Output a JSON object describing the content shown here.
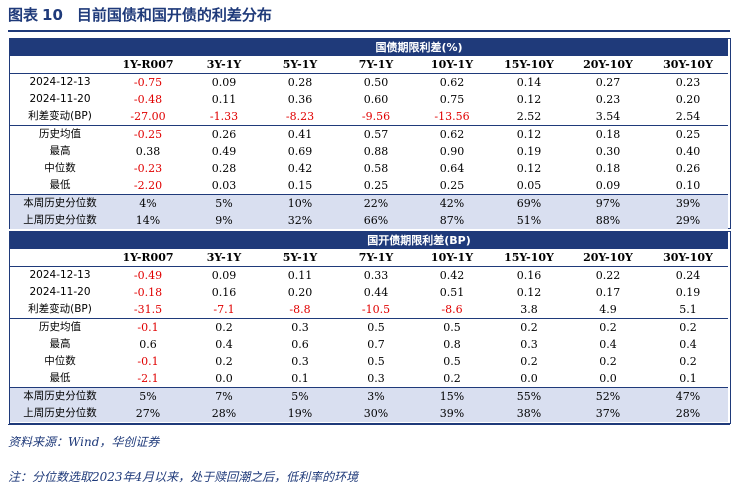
{
  "title": {
    "prefix": "图表",
    "number": "10",
    "text": "目前国债和国开债的利差分布"
  },
  "columns": [
    "1Y-R007",
    "3Y-1Y",
    "5Y-1Y",
    "7Y-1Y",
    "10Y-1Y",
    "15Y-10Y",
    "20Y-10Y",
    "30Y-10Y"
  ],
  "colors": {
    "accent": "#1f3a7a",
    "negative": "#e00000",
    "highlight_row": "#d9dff0"
  },
  "sections": [
    {
      "title": "国债期限利差(%)",
      "rows": [
        {
          "label": "2024-12-13",
          "values": [
            "-0.75",
            "0.09",
            "0.28",
            "0.50",
            "0.62",
            "0.14",
            "0.27",
            "0.23"
          ]
        },
        {
          "label": "2024-11-20",
          "values": [
            "-0.48",
            "0.11",
            "0.36",
            "0.60",
            "0.75",
            "0.12",
            "0.23",
            "0.20"
          ]
        },
        {
          "label": "利差变动(BP)",
          "values": [
            "-27.00",
            "-1.33",
            "-8.23",
            "-9.56",
            "-13.56",
            "2.52",
            "3.54",
            "2.54"
          ]
        },
        {
          "label": "历史均值",
          "values": [
            "-0.25",
            "0.26",
            "0.41",
            "0.57",
            "0.62",
            "0.12",
            "0.18",
            "0.25"
          ]
        },
        {
          "label": "最高",
          "values": [
            "0.38",
            "0.49",
            "0.69",
            "0.88",
            "0.90",
            "0.19",
            "0.30",
            "0.40"
          ]
        },
        {
          "label": "中位数",
          "values": [
            "-0.23",
            "0.28",
            "0.42",
            "0.58",
            "0.64",
            "0.12",
            "0.18",
            "0.26"
          ]
        },
        {
          "label": "最低",
          "values": [
            "-2.20",
            "0.03",
            "0.15",
            "0.25",
            "0.25",
            "0.05",
            "0.09",
            "0.10"
          ]
        },
        {
          "label": "本周历史分位数",
          "values": [
            "4%",
            "5%",
            "10%",
            "22%",
            "42%",
            "69%",
            "97%",
            "39%"
          ]
        },
        {
          "label": "上周历史分位数",
          "values": [
            "14%",
            "9%",
            "32%",
            "66%",
            "87%",
            "51%",
            "88%",
            "29%"
          ]
        }
      ]
    },
    {
      "title": "国开债期限利差(BP)",
      "rows": [
        {
          "label": "2024-12-13",
          "values": [
            "-0.49",
            "0.09",
            "0.11",
            "0.33",
            "0.42",
            "0.16",
            "0.22",
            "0.24"
          ]
        },
        {
          "label": "2024-11-20",
          "values": [
            "-0.18",
            "0.16",
            "0.20",
            "0.44",
            "0.51",
            "0.12",
            "0.17",
            "0.19"
          ]
        },
        {
          "label": "利差变动(BP)",
          "values": [
            "-31.5",
            "-7.1",
            "-8.8",
            "-10.5",
            "-8.6",
            "3.8",
            "4.9",
            "5.1"
          ]
        },
        {
          "label": "历史均值",
          "values": [
            "-0.1",
            "0.2",
            "0.3",
            "0.5",
            "0.5",
            "0.2",
            "0.2",
            "0.2"
          ]
        },
        {
          "label": "最高",
          "values": [
            "0.6",
            "0.4",
            "0.6",
            "0.7",
            "0.8",
            "0.3",
            "0.4",
            "0.4"
          ]
        },
        {
          "label": "中位数",
          "values": [
            "-0.1",
            "0.2",
            "0.3",
            "0.5",
            "0.5",
            "0.2",
            "0.2",
            "0.2"
          ]
        },
        {
          "label": "最低",
          "values": [
            "-2.1",
            "0.0",
            "0.1",
            "0.3",
            "0.2",
            "0.0",
            "0.0",
            "0.1"
          ]
        },
        {
          "label": "本周历史分位数",
          "values": [
            "5%",
            "7%",
            "5%",
            "3%",
            "15%",
            "55%",
            "52%",
            "47%"
          ]
        },
        {
          "label": "上周历史分位数",
          "values": [
            "27%",
            "28%",
            "19%",
            "30%",
            "39%",
            "38%",
            "37%",
            "28%"
          ]
        }
      ]
    }
  ],
  "source": "资料来源：Wind，华创证券",
  "note": "注：分位数选取2023年4月以来，处于赎回潮之后，低利率的环境"
}
